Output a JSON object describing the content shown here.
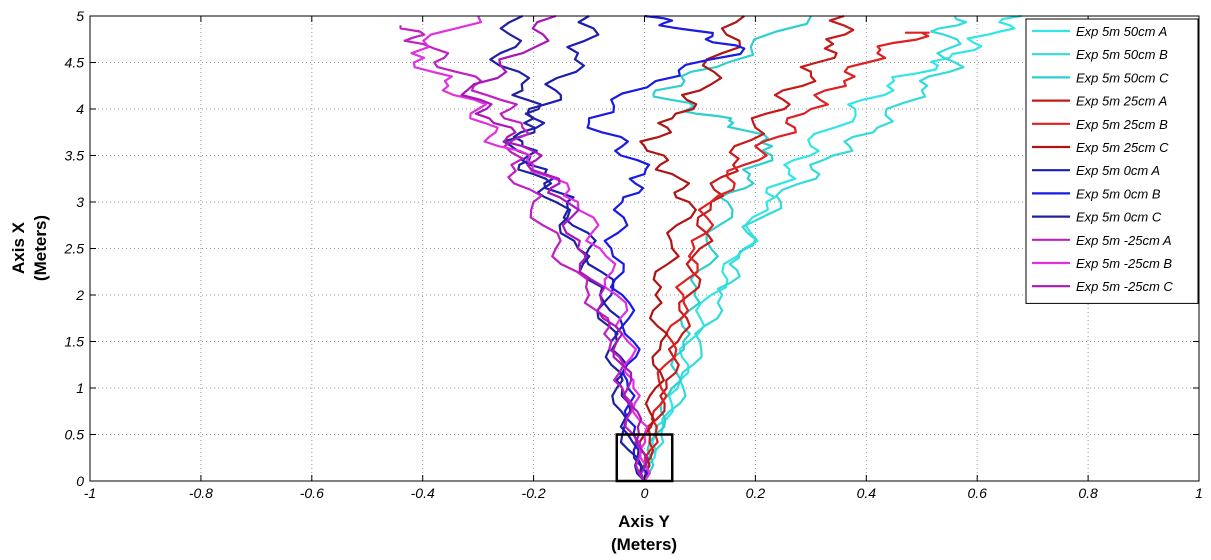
{
  "chart_data": {
    "type": "line",
    "title": "",
    "xlabel": "Axis Y\n(Meters)",
    "xlabel_lines": [
      "Axis Y",
      "(Meters)"
    ],
    "ylabel_lines": [
      "Axis X",
      "(Meters)"
    ],
    "xlim": [
      -1,
      1
    ],
    "ylim": [
      0,
      5
    ],
    "xticks": [
      -1,
      -0.8,
      -0.6,
      -0.4,
      -0.2,
      0,
      0.2,
      0.4,
      0.6,
      0.8,
      1
    ],
    "xtick_labels": [
      "-1",
      "-0.8",
      "-0.6",
      "-0.4",
      "-0.2",
      "0",
      "0.2",
      "0.4",
      "0.6",
      "0.8",
      "1"
    ],
    "yticks": [
      0,
      0.5,
      1,
      1.5,
      2,
      2.5,
      3,
      3.5,
      4,
      4.5,
      5
    ],
    "ytick_labels": [
      "0",
      "0.5",
      "1",
      "1.5",
      "2",
      "2.5",
      "3",
      "3.5",
      "4",
      "4.5",
      "5"
    ],
    "grid": true,
    "legend_position": "top-right",
    "start_box": {
      "x": [
        -0.05,
        0.05
      ],
      "y": [
        0,
        0.5
      ],
      "color": "#000000"
    },
    "series": [
      {
        "name": "Exp 5m 50cm A",
        "color": "#33e5e5",
        "x": [
          0.0,
          0.02,
          0.06,
          0.08,
          0.12,
          0.18,
          0.22,
          0.26,
          0.3,
          0.38,
          0.45,
          0.55,
          0.62,
          0.68
        ],
        "y": [
          0.0,
          0.5,
          1.0,
          1.5,
          2.0,
          2.5,
          3.0,
          3.3,
          3.6,
          4.0,
          4.3,
          4.55,
          4.8,
          5.0
        ]
      },
      {
        "name": "Exp 5m 50cm B",
        "color": "#36dada",
        "x": [
          0.0,
          0.03,
          0.07,
          0.1,
          0.14,
          0.17,
          0.2,
          0.28,
          0.34,
          0.42,
          0.5,
          0.56,
          0.54,
          0.56
        ],
        "y": [
          0.0,
          0.5,
          1.0,
          1.5,
          2.0,
          2.4,
          2.8,
          3.2,
          3.5,
          3.8,
          4.2,
          4.5,
          4.8,
          5.0
        ]
      },
      {
        "name": "Exp 5m 50cm C",
        "color": "#2ecfcf",
        "x": [
          0.0,
          0.02,
          0.05,
          0.07,
          0.09,
          0.12,
          0.15,
          0.19,
          0.23,
          0.16,
          0.08,
          0.02,
          0.15,
          0.3
        ],
        "y": [
          0.0,
          0.5,
          1.0,
          1.5,
          2.0,
          2.5,
          3.0,
          3.3,
          3.6,
          3.85,
          4.0,
          4.2,
          4.5,
          5.0
        ]
      },
      {
        "name": "Exp 5m 25cm A",
        "color": "#c51a1a",
        "x": [
          0.0,
          0.01,
          0.04,
          0.06,
          0.08,
          0.1,
          0.12,
          0.16,
          0.2,
          0.25,
          0.3,
          0.34,
          0.36
        ],
        "y": [
          0.0,
          0.5,
          1.0,
          1.5,
          2.0,
          2.5,
          3.0,
          3.4,
          3.8,
          4.1,
          4.4,
          4.7,
          5.0
        ]
      },
      {
        "name": "Exp 5m 25cm B",
        "color": "#e02020",
        "x": [
          0.0,
          0.02,
          0.03,
          0.05,
          0.07,
          0.09,
          0.12,
          0.18,
          0.24,
          0.3,
          0.36,
          0.42,
          0.5,
          0.48
        ],
        "y": [
          0.0,
          0.5,
          1.0,
          1.5,
          2.0,
          2.5,
          3.0,
          3.4,
          3.7,
          4.0,
          4.3,
          4.6,
          4.82,
          4.82
        ]
      },
      {
        "name": "Exp 5m 25cm C",
        "color": "#b01515",
        "x": [
          0.0,
          0.0,
          0.02,
          0.03,
          0.02,
          0.05,
          0.08,
          0.05,
          0.0,
          0.05,
          0.1,
          0.14,
          0.18
        ],
        "y": [
          0.0,
          0.5,
          1.0,
          1.5,
          2.0,
          2.5,
          3.0,
          3.3,
          3.6,
          3.9,
          4.2,
          4.6,
          5.0
        ]
      },
      {
        "name": "Exp 5m 0cm A",
        "color": "#1c1cb0",
        "x": [
          0.0,
          -0.03,
          -0.04,
          -0.05,
          -0.06,
          -0.1,
          -0.14,
          -0.18,
          -0.22,
          -0.2,
          -0.16,
          -0.12,
          -0.1
        ],
        "y": [
          0.0,
          0.5,
          1.0,
          1.5,
          2.0,
          2.5,
          3.0,
          3.3,
          3.6,
          3.9,
          4.2,
          4.6,
          5.0
        ]
      },
      {
        "name": "Exp 5m 0cm B",
        "color": "#1a1ae6",
        "x": [
          0.0,
          -0.02,
          -0.03,
          -0.02,
          -0.04,
          -0.06,
          -0.04,
          0.0,
          -0.04,
          -0.1,
          0.02,
          0.18,
          0.08,
          0.0
        ],
        "y": [
          0.0,
          0.5,
          1.0,
          1.5,
          2.0,
          2.5,
          3.0,
          3.3,
          3.6,
          3.9,
          4.3,
          4.65,
          4.85,
          5.0
        ]
      },
      {
        "name": "Exp 5m 0cm C",
        "color": "#2020a0",
        "x": [
          0.0,
          -0.04,
          -0.05,
          -0.06,
          -0.08,
          -0.12,
          -0.16,
          -0.2,
          -0.24,
          -0.2,
          -0.22,
          -0.26,
          -0.22
        ],
        "y": [
          0.0,
          0.5,
          1.0,
          1.5,
          2.0,
          2.5,
          3.0,
          3.3,
          3.6,
          3.9,
          4.2,
          4.6,
          5.0
        ]
      },
      {
        "name": "Exp 5m -25cm A",
        "color": "#c020c0",
        "x": [
          0.0,
          -0.02,
          -0.04,
          -0.06,
          -0.1,
          -0.16,
          -0.2,
          -0.24,
          -0.22,
          -0.26,
          -0.34,
          -0.4,
          -0.44
        ],
        "y": [
          0.0,
          0.5,
          1.0,
          1.5,
          2.0,
          2.5,
          3.0,
          3.4,
          3.8,
          4.1,
          4.4,
          4.7,
          4.9
        ]
      },
      {
        "name": "Exp 5m -25cm B",
        "color": "#e030e0",
        "x": [
          0.0,
          0.0,
          -0.02,
          -0.03,
          -0.05,
          -0.08,
          -0.12,
          -0.2,
          -0.28,
          -0.3,
          -0.36,
          -0.42,
          -0.3
        ],
        "y": [
          0.0,
          0.5,
          1.0,
          1.5,
          2.0,
          2.5,
          3.0,
          3.4,
          3.7,
          4.0,
          4.3,
          4.6,
          5.0
        ]
      },
      {
        "name": "Exp 5m -25cm C",
        "color": "#a818b8",
        "x": [
          0.0,
          -0.01,
          -0.03,
          -0.05,
          -0.08,
          -0.12,
          -0.14,
          -0.18,
          -0.22,
          -0.28,
          -0.32,
          -0.22,
          -0.16
        ],
        "y": [
          0.0,
          0.5,
          1.0,
          1.5,
          2.0,
          2.5,
          3.0,
          3.3,
          3.6,
          3.9,
          4.2,
          4.6,
          5.0
        ]
      }
    ]
  }
}
